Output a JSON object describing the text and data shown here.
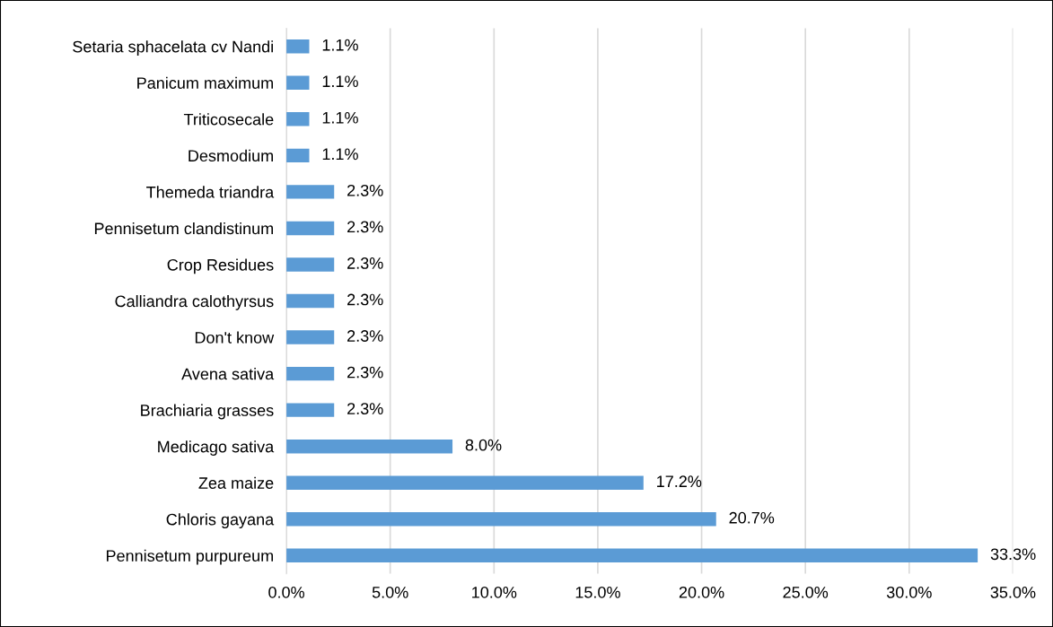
{
  "chart_data": {
    "type": "bar",
    "orientation": "horizontal",
    "categories": [
      "Setaria sphacelata cv Nandi",
      "Panicum maximum",
      "Triticosecale",
      "Desmodium",
      "Themeda triandra",
      "Pennisetum clandistinum",
      "Crop Residues",
      "Calliandra calothyrsus",
      "Don't know",
      "Avena sativa",
      "Brachiaria grasses",
      "Medicago sativa",
      "Zea maize",
      "Chloris gayana",
      "Pennisetum purpureum"
    ],
    "values": [
      1.1,
      1.1,
      1.1,
      1.1,
      2.3,
      2.3,
      2.3,
      2.3,
      2.3,
      2.3,
      2.3,
      8.0,
      17.2,
      20.7,
      33.3
    ],
    "value_labels": [
      "1.1%",
      "1.1%",
      "1.1%",
      "1.1%",
      "2.3%",
      "2.3%",
      "2.3%",
      "2.3%",
      "2.3%",
      "2.3%",
      "2.3%",
      "8.0%",
      "17.2%",
      "20.7%",
      "33.3%"
    ],
    "color": "#5b9bd5",
    "xlim": [
      0,
      35
    ],
    "xticks": [
      {
        "value": 0,
        "label": "0.0%"
      },
      {
        "value": 5,
        "label": "5.0%"
      },
      {
        "value": 10,
        "label": "10.0%"
      },
      {
        "value": 15,
        "label": "15.0%"
      },
      {
        "value": 20,
        "label": "20.0%"
      },
      {
        "value": 25,
        "label": "25.0%"
      },
      {
        "value": 30,
        "label": "30.0%"
      },
      {
        "value": 35,
        "label": "35.0%"
      }
    ],
    "grid": "x",
    "legend": false
  }
}
